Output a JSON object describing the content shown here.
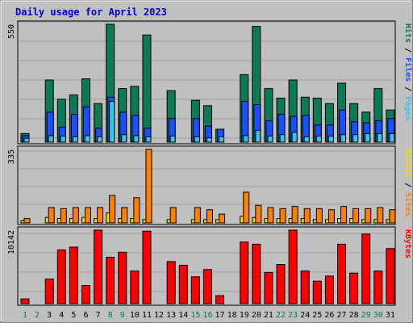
{
  "chart_data": {
    "type": "bar",
    "title": "Daily usage for April 2023",
    "days": [
      "1",
      "2",
      "3",
      "4",
      "5",
      "6",
      "7",
      "8",
      "9",
      "10",
      "11",
      "12",
      "13",
      "14",
      "15",
      "16",
      "17",
      "18",
      "19",
      "20",
      "21",
      "22",
      "23",
      "24",
      "25",
      "26",
      "27",
      "28",
      "29",
      "30",
      "31"
    ],
    "weekend_days": [
      "1",
      "2",
      "8",
      "9",
      "15",
      "16",
      "22",
      "23",
      "29",
      "30"
    ],
    "panels": [
      {
        "id": "hits",
        "max_label": "550",
        "max": 550,
        "series": [
          {
            "name": "Hits",
            "color": "#0b7a55",
            "values": [
              40,
              0,
              290,
              200,
              220,
              295,
              180,
              550,
              250,
              260,
              500,
              0,
              240,
              0,
              195,
              170,
              60,
              0,
              315,
              540,
              250,
              205,
              290,
              210,
              205,
              180,
              275,
              180,
              140,
              250,
              150
            ]
          },
          {
            "name": "Files",
            "color": "#1a4fff",
            "values": [
              30,
              0,
              140,
              70,
              130,
              165,
              65,
              210,
              140,
              125,
              65,
              0,
              110,
              0,
              110,
              75,
              60,
              0,
              190,
              175,
              100,
              130,
              120,
              125,
              80,
              80,
              150,
              95,
              90,
              100,
              110
            ]
          },
          {
            "name": "Pages",
            "color": "#33c6f0",
            "values": [
              18,
              0,
              30,
              28,
              25,
              30,
              25,
              190,
              35,
              30,
              25,
              0,
              28,
              0,
              25,
              20,
              25,
              0,
              30,
              55,
              28,
              35,
              45,
              25,
              28,
              28,
              35,
              35,
              40,
              40,
              40
            ]
          }
        ],
        "legend": [
          {
            "text": "Pages",
            "color": "#33c6f0"
          },
          {
            "text": " / ",
            "color": "#000000"
          },
          {
            "text": "Files",
            "color": "#1a4fff"
          },
          {
            "text": " / ",
            "color": "#000000"
          },
          {
            "text": "Hits",
            "color": "#0b7a55"
          }
        ]
      },
      {
        "id": "visits",
        "max_label": "335",
        "max": 335,
        "series": [
          {
            "name": "Visits",
            "color": "#ffd700",
            "values": [
              10,
              0,
              25,
              20,
              20,
              25,
              20,
              45,
              20,
              20,
              15,
              0,
              15,
              0,
              15,
              15,
              15,
              0,
              30,
              25,
              20,
              20,
              20,
              20,
              15,
              15,
              20,
              20,
              15,
              15,
              15
            ]
          },
          {
            "name": "Sites",
            "color": "#ff8000",
            "values": [
              20,
              0,
              70,
              65,
              70,
              70,
              70,
              125,
              70,
              115,
              335,
              0,
              70,
              0,
              70,
              60,
              40,
              0,
              140,
              80,
              70,
              65,
              75,
              65,
              65,
              60,
              75,
              65,
              65,
              70,
              60
            ]
          }
        ],
        "legend": [
          {
            "text": "Sites",
            "color": "#ff8000"
          },
          {
            "text": " / ",
            "color": "#000000"
          },
          {
            "text": "Visits",
            "color": "#ffd700"
          }
        ]
      },
      {
        "id": "kbytes",
        "max_label": "10142",
        "max": 10142,
        "series": [
          {
            "name": "KBytes",
            "color": "#ff0000",
            "values": [
              650,
              0,
              3400,
              7400,
              7800,
              2500,
              10142,
              6400,
              7100,
              4500,
              10000,
              0,
              5800,
              5300,
              3700,
              4700,
              1100,
              0,
              8500,
              8200,
              4300,
              5400,
              10142,
              4500,
              3100,
              3800,
              8200,
              4200,
              9600,
              4500,
              7600
            ]
          }
        ],
        "legend": [
          {
            "text": "KBytes",
            "color": "#ff0000"
          }
        ]
      }
    ]
  }
}
